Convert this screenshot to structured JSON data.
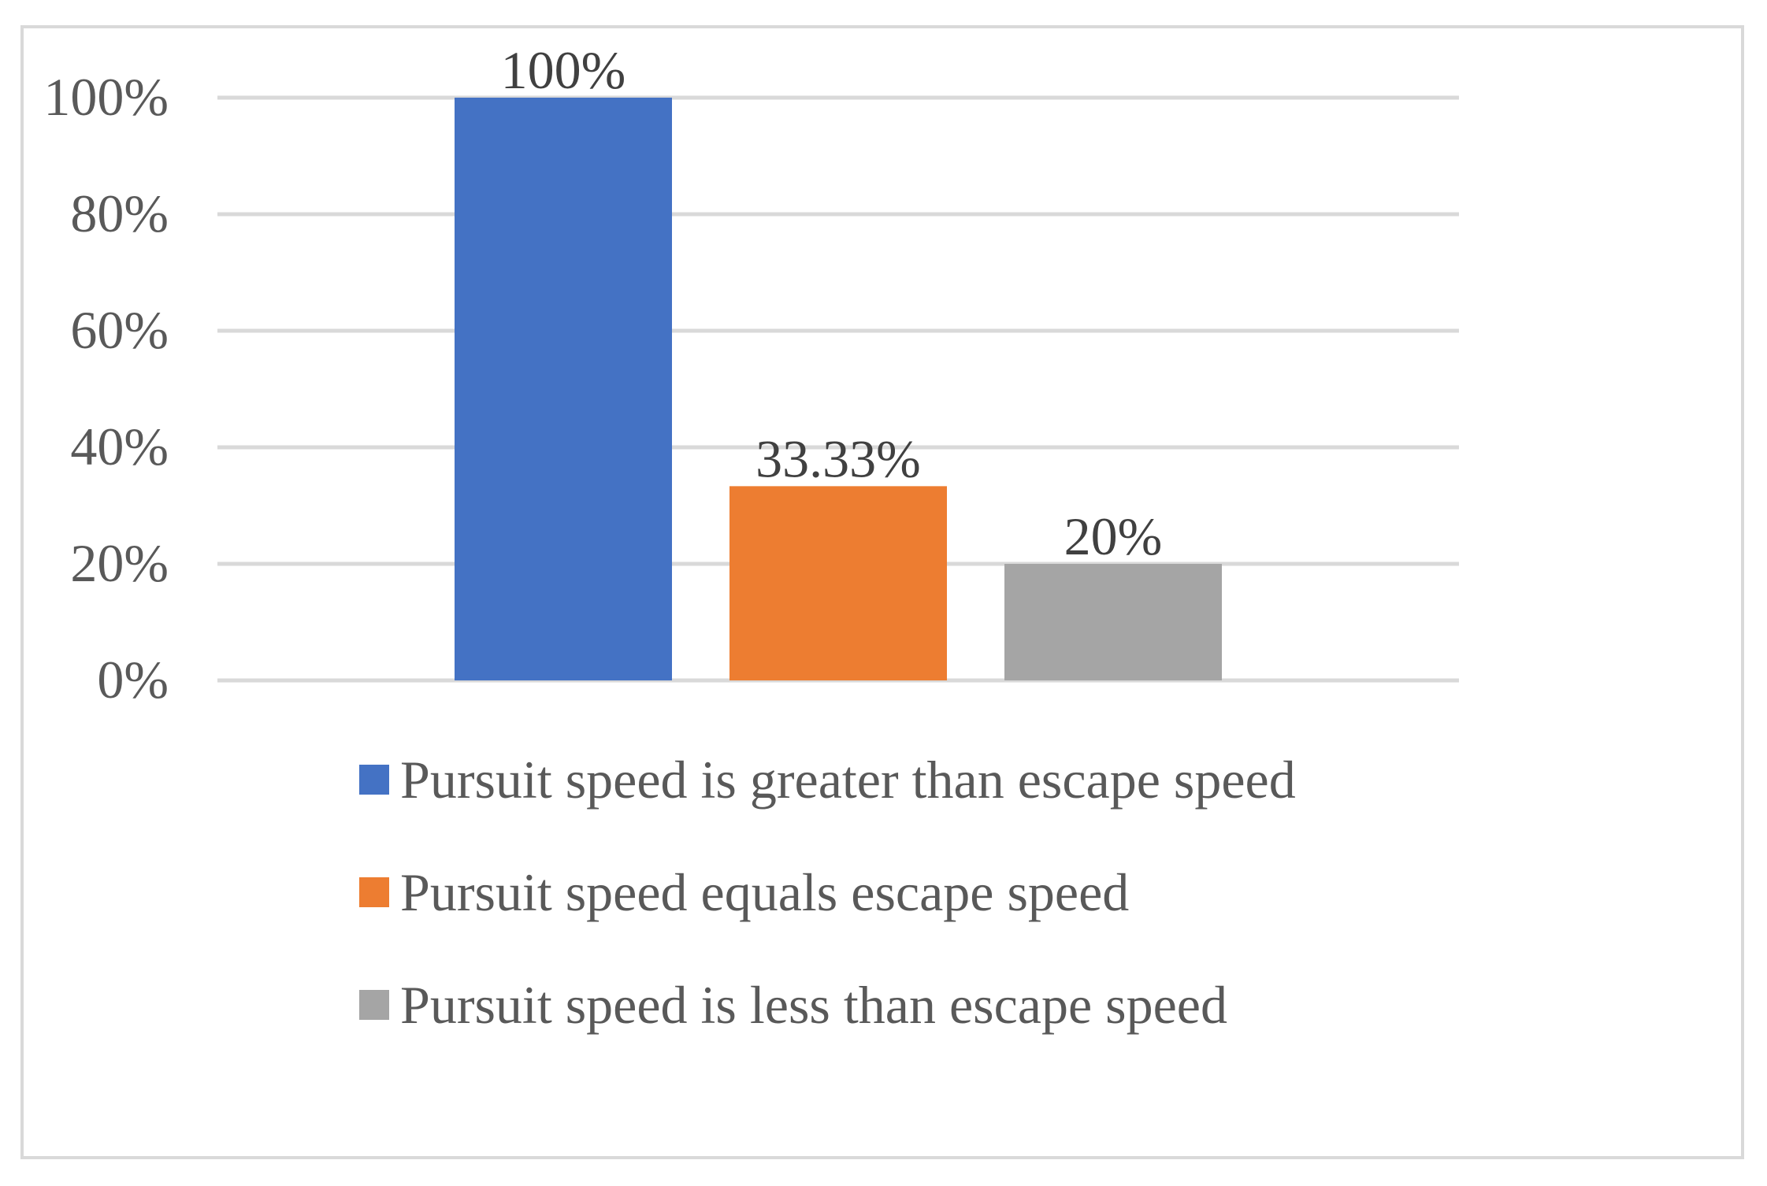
{
  "chart_data": {
    "type": "bar",
    "categories": [
      ""
    ],
    "series": [
      {
        "name": "Pursuit speed is greater than escape speed",
        "values": [
          100
        ],
        "color": "#4472c4",
        "label": "100%"
      },
      {
        "name": "Pursuit speed equals escape speed",
        "values": [
          33.33
        ],
        "color": "#ed7d31",
        "label": "33.33%"
      },
      {
        "name": "Pursuit speed is less than escape speed",
        "values": [
          20
        ],
        "color": "#a5a5a5",
        "label": "20%"
      }
    ],
    "ylim": [
      0,
      100
    ],
    "yticks": [
      0,
      20,
      40,
      60,
      80,
      100
    ],
    "ytick_labels": [
      "0%",
      "20%",
      "40%",
      "60%",
      "80%",
      "100%"
    ],
    "grid": true,
    "legend": "bottom",
    "gridline_color": "#d9d9d9"
  }
}
